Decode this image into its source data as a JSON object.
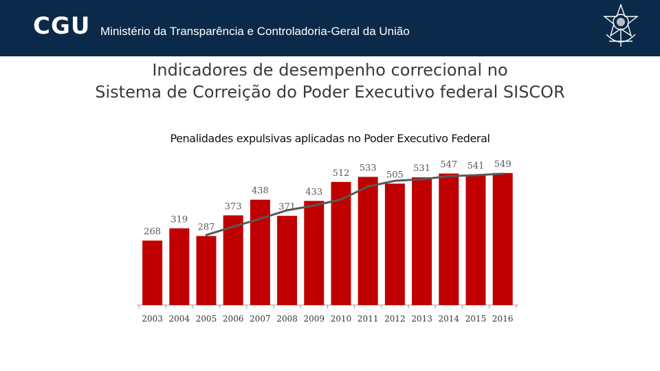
{
  "header": {
    "logo": "CGU",
    "org_name": "Ministério da Transparência e Controladoria-Geral da União",
    "emblem_icon": "brazil-coat-of-arms-icon"
  },
  "slide": {
    "title_line1": "Indicadores de desempenho correcional no",
    "title_line2": "Sistema de Correição do Poder Executivo federal  SISCOR"
  },
  "colors": {
    "header_bg": "#0b2a4a",
    "bar": "#c00000",
    "trend_line": "#595959"
  },
  "chart_data": {
    "type": "bar",
    "title": "Penalidades expulsivas aplicadas no Poder Executivo Federal",
    "categories": [
      "2003",
      "2004",
      "2005",
      "2006",
      "2007",
      "2008",
      "2009",
      "2010",
      "2011",
      "2012",
      "2013",
      "2014",
      "2015",
      "2016"
    ],
    "series": [
      {
        "name": "Penalidades expulsivas",
        "values": [
          268,
          319,
          287,
          373,
          438,
          371,
          433,
          512,
          533,
          505,
          531,
          547,
          541,
          549
        ]
      }
    ],
    "trendline": {
      "type": "moving-average",
      "start_category": "2005",
      "values": [
        291,
        326,
        359,
        394,
        414,
        439,
        493,
        517,
        523,
        536,
        540,
        546
      ]
    },
    "ylim": [
      0,
      600
    ],
    "xlabel": "",
    "ylabel": "",
    "grid": false,
    "legend": "none"
  }
}
